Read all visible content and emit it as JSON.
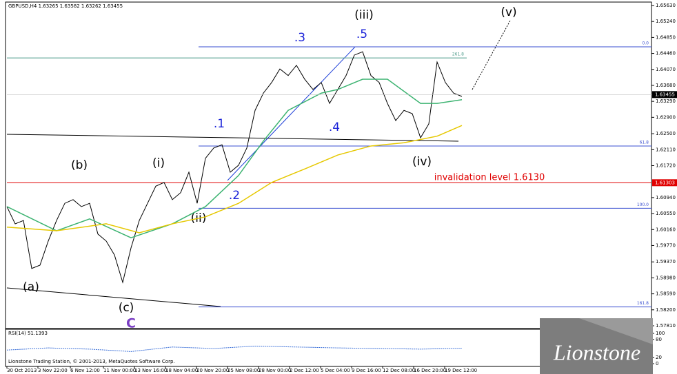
{
  "chart_data": {
    "type": "line",
    "title": "GBPUSD,H4 1.63265 1.63582 1.63262 1.63455",
    "x": [
      0,
      1,
      2,
      3,
      4,
      5,
      6,
      7,
      8,
      9,
      10,
      11,
      12,
      13,
      14,
      15,
      16,
      17,
      18,
      19,
      20,
      21,
      22,
      23,
      24,
      25,
      26,
      27,
      28,
      29,
      30,
      31,
      32,
      33,
      34,
      35,
      36,
      37,
      38,
      39,
      40,
      41,
      42,
      43,
      44,
      45,
      46,
      47,
      48,
      49,
      50,
      51,
      52,
      53,
      54,
      55
    ],
    "ylim": [
      1.5781,
      1.6563
    ],
    "yticks": [
      {
        "value": 1.6563,
        "label": "1.65630"
      },
      {
        "value": 1.6524,
        "label": "1.65240"
      },
      {
        "value": 1.6485,
        "label": "1.64850"
      },
      {
        "value": 1.6446,
        "label": "1.64460"
      },
      {
        "value": 1.6407,
        "label": "1.64070"
      },
      {
        "value": 1.6368,
        "label": "1.63680"
      },
      {
        "value": 1.6329,
        "label": "1.63290"
      },
      {
        "value": 1.629,
        "label": "1.62900"
      },
      {
        "value": 1.625,
        "label": "1.62500"
      },
      {
        "value": 1.6211,
        "label": "1.62110"
      },
      {
        "value": 1.6172,
        "label": "1.61720"
      },
      {
        "value": 1.6094,
        "label": "1.60940"
      },
      {
        "value": 1.6055,
        "label": "1.60550"
      },
      {
        "value": 1.6016,
        "label": "1.60160"
      },
      {
        "value": 1.5977,
        "label": "1.59770"
      },
      {
        "value": 1.5937,
        "label": "1.59370"
      },
      {
        "value": 1.5898,
        "label": "1.58980"
      },
      {
        "value": 1.5859,
        "label": "1.58590"
      },
      {
        "value": 1.582,
        "label": "1.58200"
      },
      {
        "value": 1.5781,
        "label": "1.57810"
      }
    ],
    "xticks": [
      {
        "value": 0,
        "label": "30 Oct 2013"
      },
      {
        "value": 3.75,
        "label": "3 Nov 22:00"
      },
      {
        "value": 7.67,
        "label": "6 Nov 12:00"
      },
      {
        "value": 11.67,
        "label": "11 Nov 00:00"
      },
      {
        "value": 15.42,
        "label": "13 Nov 16:00"
      },
      {
        "value": 19.17,
        "label": "18 Nov 04:00"
      },
      {
        "value": 22.92,
        "label": "20 Nov 20:00"
      },
      {
        "value": 26.67,
        "label": "25 Nov 08:00"
      },
      {
        "value": 30.42,
        "label": "28 Nov 00:00"
      },
      {
        "value": 34.17,
        "label": "2 Dec 12:00"
      },
      {
        "value": 37.92,
        "label": "5 Dec 04:00"
      },
      {
        "value": 41.67,
        "label": "9 Dec 16:00"
      },
      {
        "value": 45.42,
        "label": "12 Dec 08:00"
      },
      {
        "value": 49.17,
        "label": "16 Dec 20:00"
      },
      {
        "value": 52.92,
        "label": "19 Dec 12:00"
      }
    ],
    "series": [
      {
        "color": "#000000",
        "values": [
          1.6072,
          1.603,
          1.6038,
          1.5921,
          1.5929,
          1.5988,
          1.6038,
          1.608,
          1.6089,
          1.6072,
          1.608,
          1.6005,
          1.5988,
          1.5954,
          1.5887,
          1.5971,
          1.6038,
          1.608,
          1.6122,
          1.6131,
          1.6089,
          1.6106,
          1.6156,
          1.608,
          1.619,
          1.6215,
          1.6223,
          1.6156,
          1.6173,
          1.6215,
          1.6307,
          1.6349,
          1.6375,
          1.6408,
          1.6392,
          1.6417,
          1.6383,
          1.6358,
          1.6375,
          1.6324,
          1.6358,
          1.6392,
          1.6442,
          1.645,
          1.6392,
          1.6375,
          1.6324,
          1.6282,
          1.6307,
          1.6299,
          1.624,
          1.6274,
          1.6425,
          1.6375,
          1.6349,
          1.6341
        ]
      },
      {
        "color": "#3cb371",
        "x": [
          0,
          6,
          10,
          15,
          20,
          24,
          28,
          31,
          34,
          38,
          40,
          43,
          46,
          50,
          52,
          55
        ],
        "values": [
          1.6072,
          1.6013,
          1.6042,
          1.5996,
          1.603,
          1.6072,
          1.6148,
          1.6232,
          1.6307,
          1.6349,
          1.6358,
          1.6383,
          1.6383,
          1.6324,
          1.6324,
          1.6333
        ]
      },
      {
        "color": "#e6c800",
        "x": [
          0,
          6,
          12,
          16,
          20,
          24,
          28,
          32,
          36,
          40,
          44,
          48,
          52,
          55
        ],
        "values": [
          1.6022,
          1.6013,
          1.603,
          1.6008,
          1.603,
          1.6047,
          1.608,
          1.6131,
          1.6164,
          1.6198,
          1.622,
          1.6228,
          1.6244,
          1.627
        ]
      }
    ],
    "levels": [
      {
        "value": 1.6462,
        "label": "0.0",
        "color": "#3a4fd0"
      },
      {
        "value": 1.6435,
        "label": "261.8",
        "color": "#4f9c8c"
      },
      {
        "value": 1.622,
        "label": "61.8",
        "color": "#3a4fd0"
      },
      {
        "value": 1.61303,
        "color": "#e00000"
      },
      {
        "value": 1.6068,
        "label": "100.0",
        "color": "#3a4fd0"
      },
      {
        "value": 1.5827,
        "label": "161.8",
        "color": "#3a4fd0"
      }
    ],
    "current_price": 1.63455,
    "annotations": [
      "(iii)",
      ".3",
      ".5",
      ".1",
      ".2",
      ".4",
      "(b)",
      "(i)",
      "(ii)",
      "(a)",
      "(c)",
      "C",
      "(iv)",
      "(v)",
      "invalidation level 1.6130"
    ],
    "rsi": {
      "label": "RSI(14) 51.1393",
      "ylim": [
        0,
        100
      ],
      "yticks": [
        100,
        80,
        20,
        0
      ],
      "x": [
        0,
        5,
        10,
        15,
        20,
        25,
        30,
        35,
        40,
        45,
        50,
        55
      ],
      "values": [
        45,
        52,
        48,
        40,
        55,
        50,
        58,
        55,
        52,
        50,
        48,
        51
      ]
    },
    "footer": "Lionstone Trading Station, © 2001-2013, MetaQuotes Software Corp.",
    "logo": "Lionstone"
  }
}
